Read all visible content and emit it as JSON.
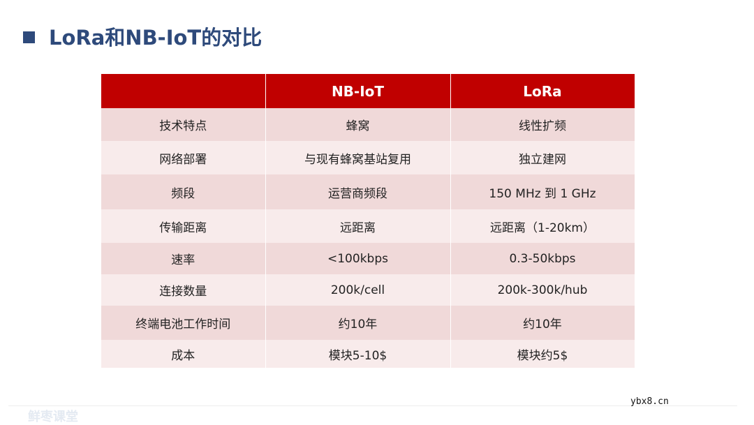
{
  "header": {
    "title": "LoRa和NB-IoT的对比"
  },
  "table": {
    "columns": [
      "NB-IoT",
      "LoRa"
    ],
    "rows": [
      [
        "技术特点",
        "蜂窝",
        "线性扩频"
      ],
      [
        "网络部署",
        "与现有蜂窝基站复用",
        "独立建网"
      ],
      [
        "频段",
        "运营商频段",
        "150 MHz 到 1 GHz"
      ],
      [
        "传输距离",
        "远距离",
        "远距离（1-20km）"
      ],
      [
        "速率",
        "<100kbps",
        "0.3-50kbps"
      ],
      [
        "连接数量",
        "200k/cell",
        "200k-300k/hub"
      ],
      [
        "终端电池工作时间",
        "约10年",
        "约10年"
      ],
      [
        "成本",
        "模块5-10$",
        "模块约5$"
      ]
    ]
  },
  "footer": {
    "watermark": "鲜枣课堂",
    "site": "ybx8.cn"
  }
}
